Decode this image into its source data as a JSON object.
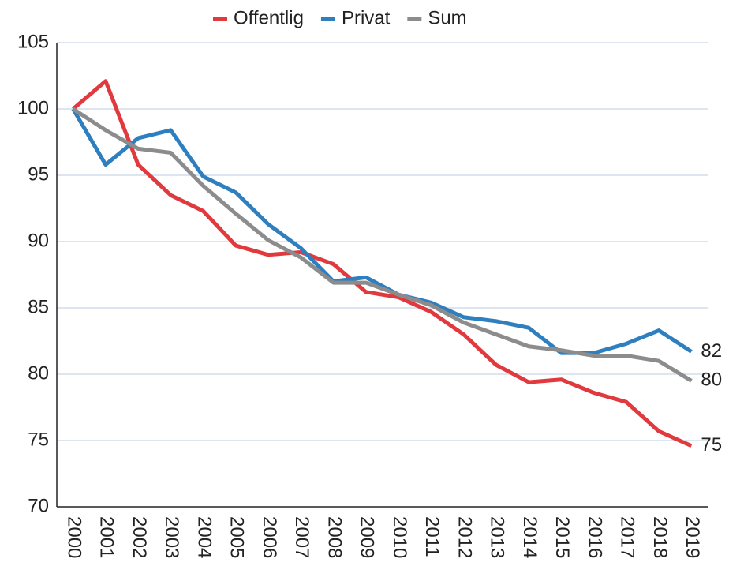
{
  "chart_data": {
    "type": "line",
    "categories": [
      "2000",
      "2001",
      "2002",
      "2003",
      "2004",
      "2005",
      "2006",
      "2007",
      "2008",
      "2009",
      "2010",
      "2011",
      "2012",
      "2013",
      "2014",
      "2015",
      "2016",
      "2017",
      "2018",
      "2019"
    ],
    "series": [
      {
        "name": "Offentlig",
        "color": "#e0393e",
        "values": [
          100,
          102.1,
          95.8,
          93.5,
          92.3,
          89.7,
          89.0,
          89.2,
          88.3,
          86.2,
          85.8,
          84.7,
          83.0,
          80.7,
          79.4,
          79.6,
          78.6,
          77.9,
          75.7,
          74.6
        ],
        "value_labels": [
          null,
          null,
          null,
          null,
          null,
          null,
          null,
          null,
          null,
          null,
          null,
          null,
          null,
          null,
          null,
          null,
          null,
          null,
          null,
          "75"
        ]
      },
      {
        "name": "Privat",
        "color": "#2e7fbf",
        "values": [
          100,
          95.8,
          97.8,
          98.4,
          94.9,
          93.7,
          91.3,
          89.5,
          87.0,
          87.3,
          86.0,
          85.4,
          84.3,
          84.0,
          83.5,
          81.6,
          81.6,
          82.3,
          83.3,
          81.7
        ],
        "value_labels": [
          null,
          null,
          null,
          null,
          null,
          null,
          null,
          null,
          null,
          null,
          null,
          null,
          null,
          null,
          null,
          null,
          null,
          null,
          null,
          "82"
        ]
      },
      {
        "name": "Sum",
        "color": "#8c8c8c",
        "values": [
          100,
          98.4,
          97.0,
          96.7,
          94.2,
          92.1,
          90.1,
          88.8,
          86.9,
          86.9,
          86.0,
          85.2,
          83.9,
          83.0,
          82.1,
          81.8,
          81.4,
          81.4,
          81.0,
          79.5
        ],
        "value_labels": [
          null,
          null,
          null,
          null,
          null,
          null,
          null,
          null,
          null,
          null,
          null,
          null,
          null,
          null,
          null,
          null,
          null,
          null,
          null,
          "80"
        ]
      }
    ],
    "ylim": [
      70,
      105
    ],
    "yticks": [
      70,
      75,
      80,
      85,
      90,
      95,
      100,
      105
    ],
    "grid": true,
    "legend": "top"
  }
}
